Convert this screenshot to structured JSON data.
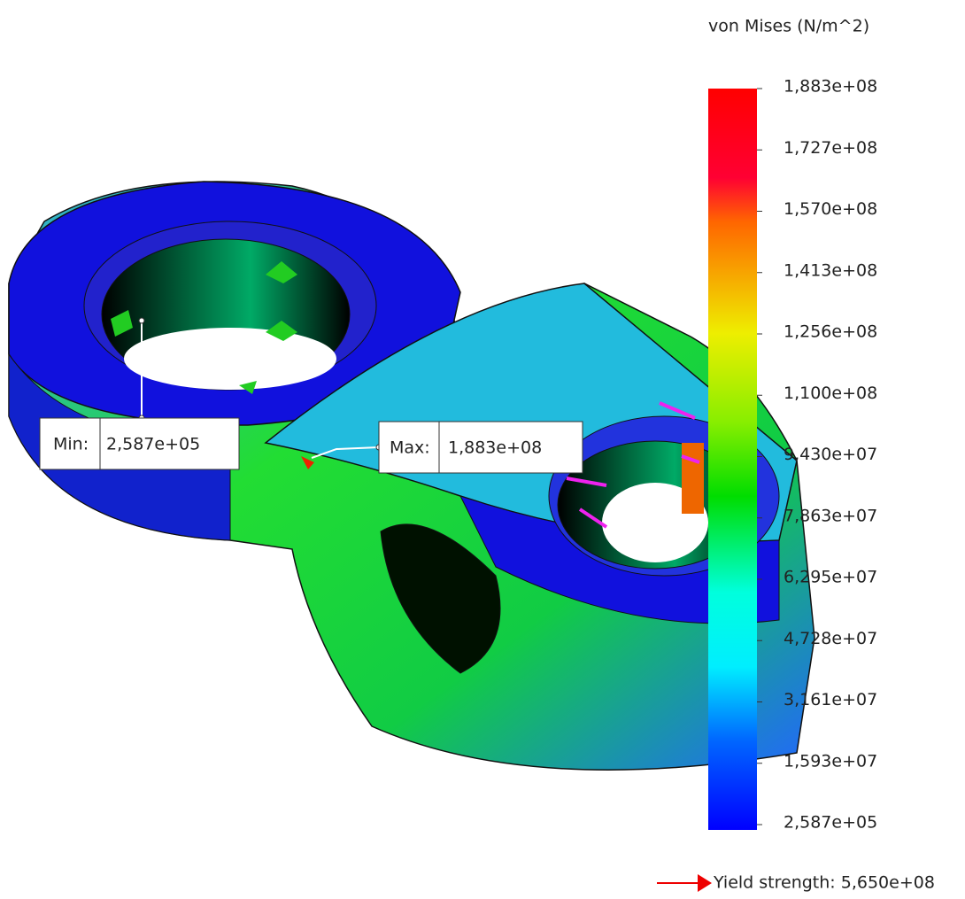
{
  "legend": {
    "title": "von Mises (N/m^2)",
    "labels": [
      "1,883e+08",
      "1,727e+08",
      "1,570e+08",
      "1,413e+08",
      "1,256e+08",
      "1,100e+08",
      "9,430e+07",
      "7,863e+07",
      "6,295e+07",
      "4,728e+07",
      "3,161e+07",
      "1,593e+07",
      "2,587e+05"
    ]
  },
  "min_probe": {
    "label": "Min:",
    "value": "2,587e+05"
  },
  "max_probe": {
    "label": "Max:",
    "value": "1,883e+08"
  },
  "yield": {
    "text": "Yield strength: 5,650e+08"
  }
}
